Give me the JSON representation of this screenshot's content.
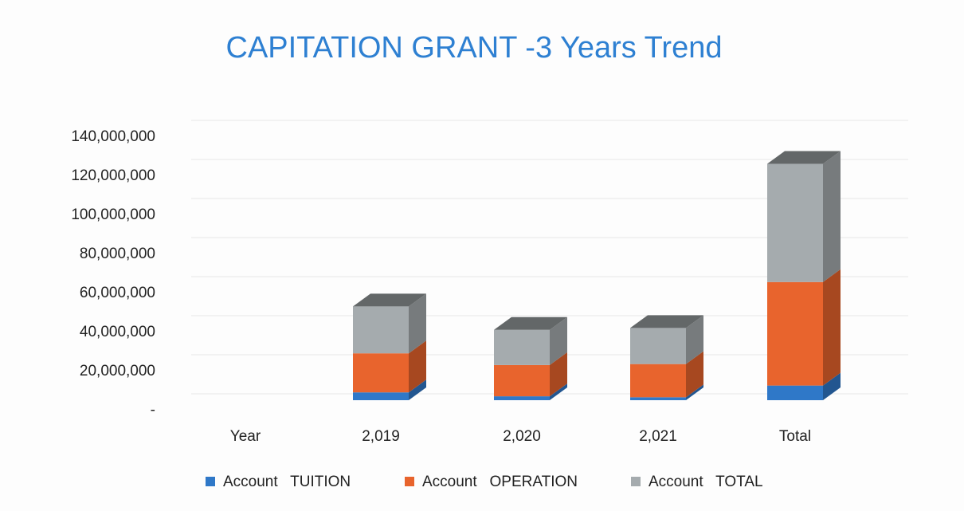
{
  "chart_data": {
    "type": "bar3d_stacked",
    "title": "CAPITATION GRANT -3 Years Trend",
    "categories": [
      "Year",
      "2,019",
      "2,020",
      "2,021",
      "Total"
    ],
    "series": [
      {
        "name": "Account   TUITION",
        "color": "#2f78c8",
        "values": [
          null,
          4000000,
          2000000,
          1500000,
          7500000
        ]
      },
      {
        "name": "Account   OPERATION",
        "color": "#e8642d",
        "values": [
          null,
          20000000,
          16000000,
          17000000,
          53000000
        ]
      },
      {
        "name": "Account   TOTAL",
        "color": "#a5abae",
        "values": [
          null,
          24000000,
          18000000,
          18500000,
          60500000
        ]
      }
    ],
    "ylim": [
      0,
      140000000
    ],
    "yticks": [
      {
        "value": 0,
        "label": "-"
      },
      {
        "value": 20000000,
        "label": "20,000,000"
      },
      {
        "value": 40000000,
        "label": "40,000,000"
      },
      {
        "value": 60000000,
        "label": "60,000,000"
      },
      {
        "value": 80000000,
        "label": "80,000,000"
      },
      {
        "value": 100000000,
        "label": "100,000,000"
      },
      {
        "value": 120000000,
        "label": "120,000,000"
      },
      {
        "value": 140000000,
        "label": "140,000,000"
      }
    ],
    "grid": true,
    "legend": "bottom"
  }
}
